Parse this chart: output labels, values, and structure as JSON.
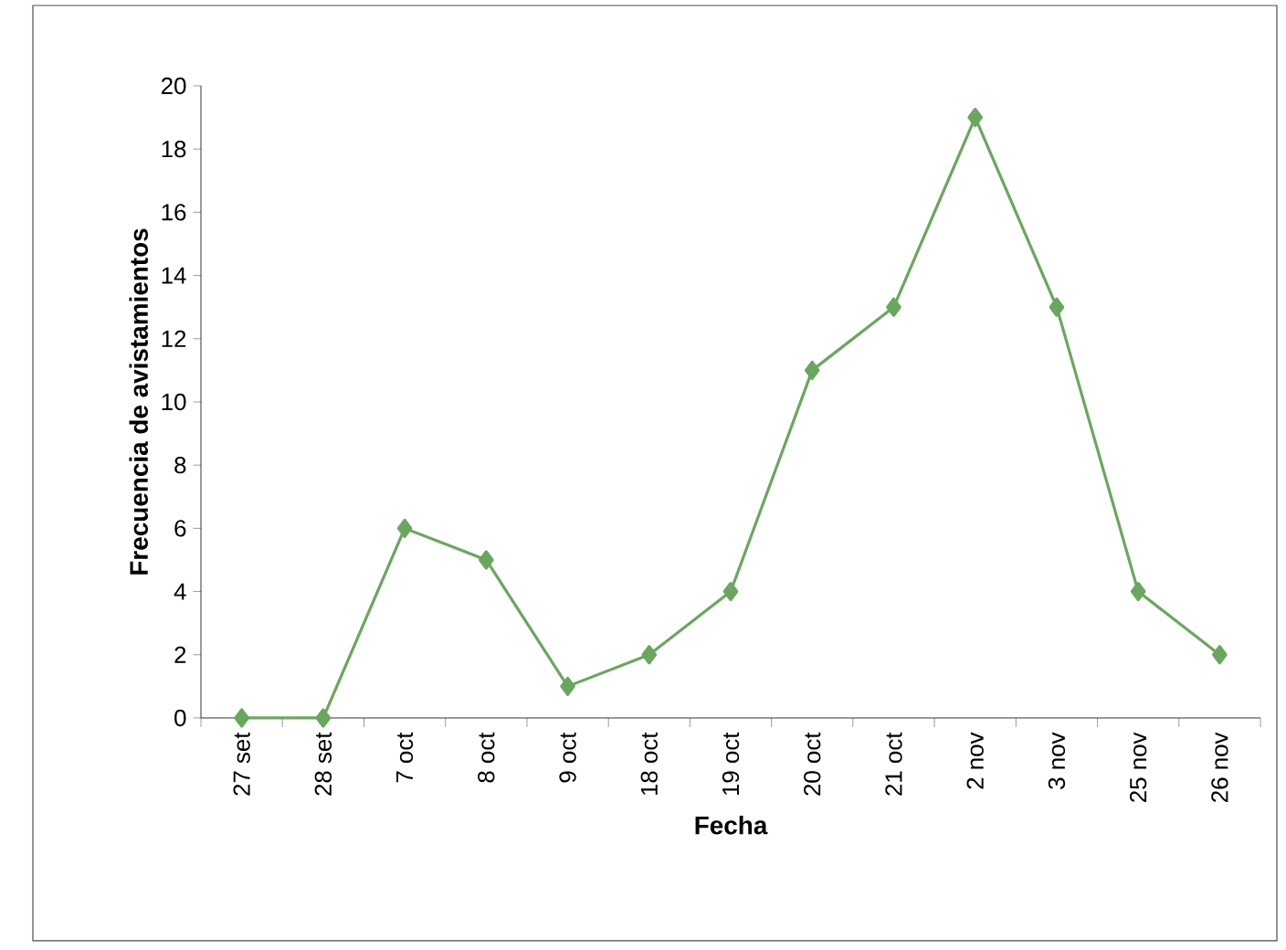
{
  "chart_data": {
    "type": "line",
    "xlabel": "Fecha",
    "ylabel": "Frecuencia de avistamientos",
    "categories": [
      "27 set",
      "28 set",
      "7 oct",
      "8 oct",
      "9 oct",
      "18 oct",
      "19 oct",
      "20 oct",
      "21 oct",
      "2 nov",
      "3 nov",
      "25 nov",
      "26 nov"
    ],
    "values": [
      0,
      0,
      6,
      5,
      1,
      2,
      4,
      11,
      13,
      19,
      13,
      4,
      2
    ],
    "color": "#6aa75e",
    "marker": "diamond",
    "line_style": "solid",
    "ylim": [
      0,
      20
    ],
    "yticks": [
      0,
      2,
      4,
      6,
      8,
      10,
      12,
      14,
      16,
      18,
      20
    ]
  }
}
